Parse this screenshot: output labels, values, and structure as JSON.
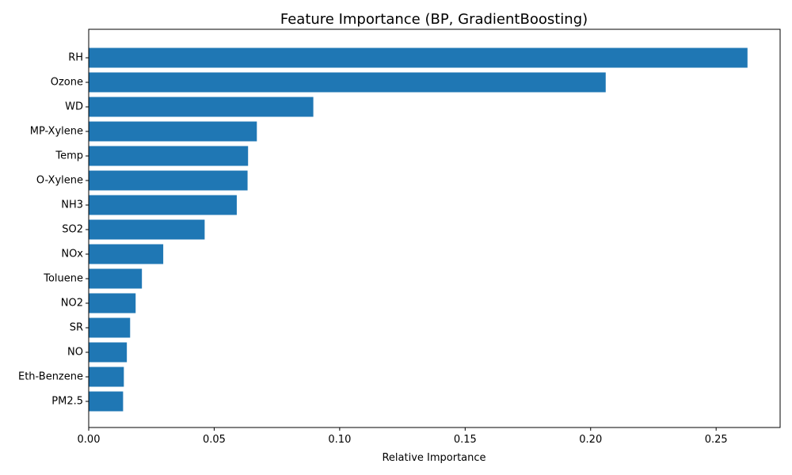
{
  "chart_data": {
    "type": "bar",
    "orientation": "horizontal",
    "title": "Feature Importance (BP, GradientBoosting)",
    "xlabel": "Relative Importance",
    "ylabel": "",
    "xlim": [
      0,
      0.2755
    ],
    "xticks": [
      0.0,
      0.05,
      0.1,
      0.15,
      0.2,
      0.25
    ],
    "xtick_labels": [
      "0.00",
      "0.05",
      "0.10",
      "0.15",
      "0.20",
      "0.25"
    ],
    "grid": false,
    "bar_color": "#1f77b4",
    "categories": [
      "RH",
      "Ozone",
      "WD",
      "MP-Xylene",
      "Temp",
      "O-Xylene",
      "NH3",
      "SO2",
      "NOx",
      "Toluene",
      "NO2",
      "SR",
      "NO",
      "Eth-Benzene",
      "PM2.5"
    ],
    "values": [
      0.2625,
      0.206,
      0.0895,
      0.067,
      0.0635,
      0.0633,
      0.059,
      0.0462,
      0.0297,
      0.0212,
      0.0187,
      0.0165,
      0.0152,
      0.014,
      0.0137
    ]
  }
}
